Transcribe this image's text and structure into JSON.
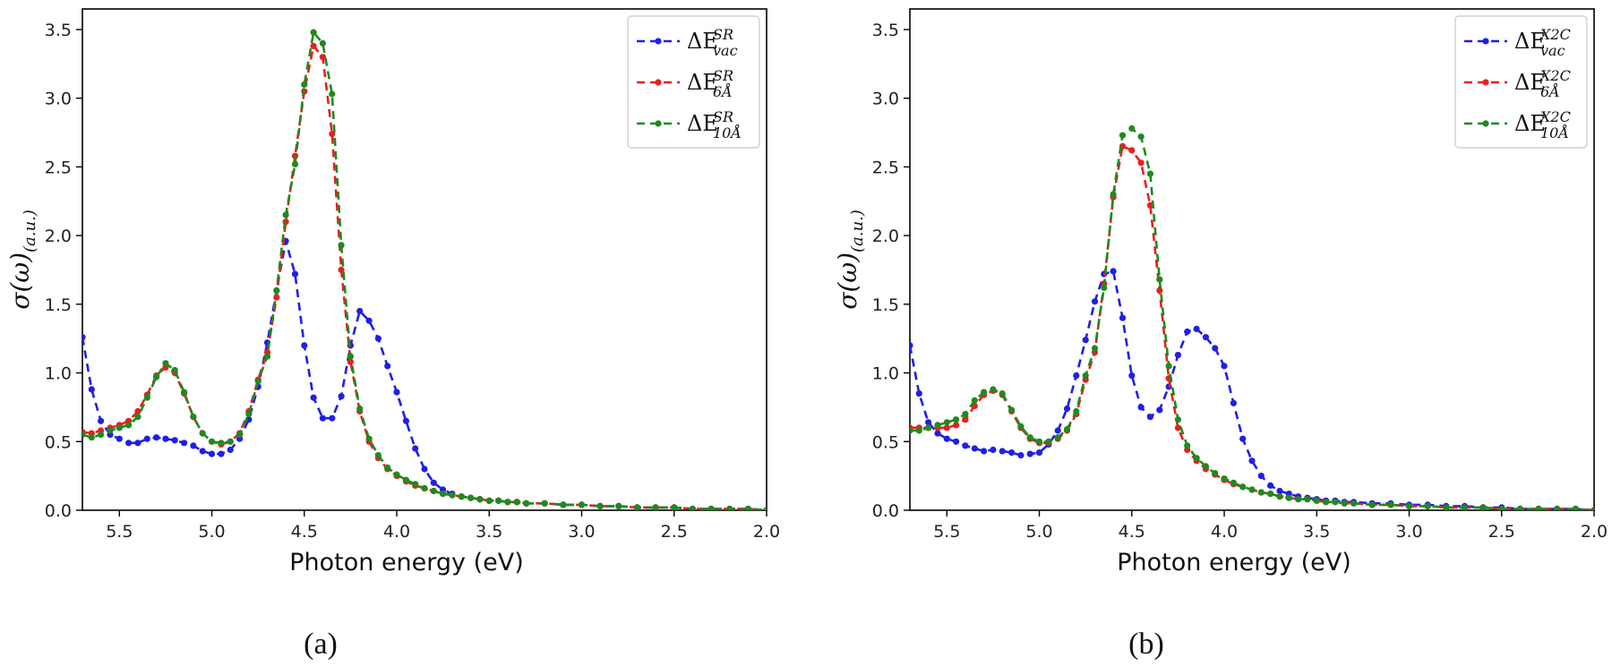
{
  "chart_data": [
    {
      "type": "line",
      "panel_caption": "(a)",
      "xlabel": "Photon energy (eV)",
      "ylabel_main": "σ(ω)",
      "ylabel_sub": "(a.u.)",
      "xlim": [
        5.7,
        2.0
      ],
      "ylim": [
        0,
        3.65
      ],
      "xticks": [
        "5.5",
        "5.0",
        "4.5",
        "4.0",
        "3.5",
        "3.0",
        "2.5",
        "2.0"
      ],
      "yticks": [
        "0.0",
        "0.5",
        "1.0",
        "1.5",
        "2.0",
        "2.5",
        "3.0",
        "3.5"
      ],
      "grid": false,
      "legend_position": "top-right",
      "colors": {
        "vac": "#1f1fe8",
        "six": "#e81f1f",
        "ten": "#1f8a1f"
      },
      "series": [
        {
          "name": "ΔE",
          "sup": "SR",
          "sub": "vac",
          "color": "#1f1fe8",
          "x": [
            5.7,
            5.65,
            5.6,
            5.55,
            5.5,
            5.45,
            5.4,
            5.35,
            5.3,
            5.25,
            5.2,
            5.15,
            5.1,
            5.05,
            5.0,
            4.95,
            4.9,
            4.85,
            4.8,
            4.75,
            4.7,
            4.65,
            4.6,
            4.55,
            4.5,
            4.45,
            4.4,
            4.35,
            4.3,
            4.25,
            4.2,
            4.15,
            4.1,
            4.05,
            4.0,
            3.95,
            3.9,
            3.85,
            3.8,
            3.75,
            3.7,
            3.65,
            3.6,
            3.55,
            3.5,
            3.45,
            3.4,
            3.35,
            3.3,
            3.2,
            3.1,
            3.0,
            2.9,
            2.8,
            2.7,
            2.6,
            2.5,
            2.4,
            2.3,
            2.2,
            2.1,
            2.0
          ],
          "y": [
            1.26,
            0.88,
            0.65,
            0.55,
            0.52,
            0.49,
            0.49,
            0.52,
            0.53,
            0.52,
            0.51,
            0.49,
            0.47,
            0.43,
            0.41,
            0.41,
            0.44,
            0.52,
            0.66,
            0.9,
            1.22,
            1.6,
            1.96,
            1.72,
            1.2,
            0.82,
            0.67,
            0.67,
            0.83,
            1.2,
            1.45,
            1.38,
            1.25,
            1.05,
            0.86,
            0.65,
            0.45,
            0.3,
            0.2,
            0.15,
            0.12,
            0.1,
            0.09,
            0.08,
            0.07,
            0.07,
            0.06,
            0.06,
            0.05,
            0.05,
            0.04,
            0.04,
            0.03,
            0.03,
            0.02,
            0.02,
            0.02,
            0.01,
            0.01,
            0.01,
            0.01,
            0.0
          ]
        },
        {
          "name": "ΔE",
          "sup": "SR",
          "sub": "6Å",
          "color": "#e81f1f",
          "x": [
            5.7,
            5.65,
            5.6,
            5.55,
            5.5,
            5.45,
            5.4,
            5.35,
            5.3,
            5.25,
            5.2,
            5.15,
            5.1,
            5.05,
            5.0,
            4.95,
            4.9,
            4.85,
            4.8,
            4.75,
            4.7,
            4.65,
            4.6,
            4.55,
            4.5,
            4.45,
            4.4,
            4.35,
            4.3,
            4.25,
            4.2,
            4.15,
            4.1,
            4.05,
            4.0,
            3.95,
            3.9,
            3.85,
            3.8,
            3.75,
            3.7,
            3.65,
            3.6,
            3.55,
            3.5,
            3.45,
            3.4,
            3.35,
            3.3,
            3.2,
            3.1,
            3.0,
            2.9,
            2.8,
            2.7,
            2.6,
            2.5,
            2.4,
            2.3,
            2.2,
            2.1,
            2.0
          ],
          "y": [
            0.57,
            0.56,
            0.58,
            0.6,
            0.62,
            0.65,
            0.72,
            0.84,
            0.98,
            1.04,
            1.0,
            0.85,
            0.68,
            0.56,
            0.5,
            0.48,
            0.5,
            0.56,
            0.72,
            0.95,
            1.15,
            1.55,
            2.1,
            2.58,
            3.05,
            3.38,
            3.3,
            2.74,
            1.75,
            1.08,
            0.72,
            0.5,
            0.38,
            0.3,
            0.25,
            0.21,
            0.18,
            0.16,
            0.14,
            0.12,
            0.11,
            0.1,
            0.09,
            0.08,
            0.07,
            0.07,
            0.06,
            0.06,
            0.05,
            0.05,
            0.04,
            0.04,
            0.03,
            0.03,
            0.02,
            0.02,
            0.02,
            0.01,
            0.01,
            0.01,
            0.01,
            0.0
          ]
        },
        {
          "name": "ΔE",
          "sup": "SR",
          "sub": "10Å",
          "color": "#1f8a1f",
          "x": [
            5.7,
            5.65,
            5.6,
            5.55,
            5.5,
            5.45,
            5.4,
            5.35,
            5.3,
            5.25,
            5.2,
            5.15,
            5.1,
            5.05,
            5.0,
            4.95,
            4.9,
            4.85,
            4.8,
            4.75,
            4.7,
            4.65,
            4.6,
            4.55,
            4.5,
            4.45,
            4.4,
            4.35,
            4.3,
            4.25,
            4.2,
            4.15,
            4.1,
            4.05,
            4.0,
            3.95,
            3.9,
            3.85,
            3.8,
            3.75,
            3.7,
            3.65,
            3.6,
            3.55,
            3.5,
            3.45,
            3.4,
            3.35,
            3.3,
            3.2,
            3.1,
            3.0,
            2.9,
            2.8,
            2.7,
            2.6,
            2.5,
            2.4,
            2.3,
            2.2,
            2.1,
            2.0
          ],
          "y": [
            0.55,
            0.53,
            0.55,
            0.58,
            0.6,
            0.62,
            0.68,
            0.82,
            0.97,
            1.07,
            1.02,
            0.86,
            0.68,
            0.56,
            0.5,
            0.49,
            0.5,
            0.55,
            0.7,
            0.94,
            1.12,
            1.6,
            2.15,
            2.52,
            3.1,
            3.48,
            3.4,
            3.03,
            1.93,
            1.12,
            0.74,
            0.52,
            0.4,
            0.31,
            0.26,
            0.22,
            0.19,
            0.16,
            0.14,
            0.12,
            0.11,
            0.1,
            0.09,
            0.08,
            0.07,
            0.07,
            0.06,
            0.06,
            0.05,
            0.05,
            0.04,
            0.04,
            0.03,
            0.03,
            0.02,
            0.02,
            0.02,
            0.01,
            0.01,
            0.01,
            0.01,
            0.0
          ]
        }
      ]
    },
    {
      "type": "line",
      "panel_caption": "(b)",
      "xlabel": "Photon energy (eV)",
      "ylabel_main": "σ(ω)",
      "ylabel_sub": "(a.u.)",
      "xlim": [
        5.7,
        2.0
      ],
      "ylim": [
        0,
        3.65
      ],
      "xticks": [
        "5.5",
        "5.0",
        "4.5",
        "4.0",
        "3.5",
        "3.0",
        "2.5",
        "2.0"
      ],
      "yticks": [
        "0.0",
        "0.5",
        "1.0",
        "1.5",
        "2.0",
        "2.5",
        "3.0",
        "3.5"
      ],
      "grid": false,
      "legend_position": "top-right",
      "colors": {
        "vac": "#1f1fe8",
        "six": "#e81f1f",
        "ten": "#1f8a1f"
      },
      "series": [
        {
          "name": "ΔE",
          "sup": "X2C",
          "sub": "vac",
          "color": "#1f1fe8",
          "x": [
            5.7,
            5.65,
            5.6,
            5.55,
            5.5,
            5.45,
            5.4,
            5.35,
            5.3,
            5.25,
            5.2,
            5.15,
            5.1,
            5.05,
            5.0,
            4.95,
            4.9,
            4.85,
            4.8,
            4.75,
            4.7,
            4.65,
            4.6,
            4.55,
            4.5,
            4.45,
            4.4,
            4.35,
            4.3,
            4.25,
            4.2,
            4.15,
            4.1,
            4.05,
            4.0,
            3.95,
            3.9,
            3.85,
            3.8,
            3.75,
            3.7,
            3.65,
            3.6,
            3.55,
            3.5,
            3.45,
            3.4,
            3.35,
            3.3,
            3.2,
            3.1,
            3.0,
            2.9,
            2.8,
            2.7,
            2.6,
            2.5,
            2.4,
            2.3,
            2.2,
            2.1,
            2.0
          ],
          "y": [
            1.2,
            0.85,
            0.64,
            0.56,
            0.52,
            0.5,
            0.47,
            0.45,
            0.43,
            0.44,
            0.43,
            0.42,
            0.4,
            0.41,
            0.42,
            0.48,
            0.58,
            0.74,
            0.98,
            1.24,
            1.52,
            1.72,
            1.74,
            1.4,
            0.98,
            0.75,
            0.68,
            0.73,
            0.9,
            1.13,
            1.3,
            1.32,
            1.26,
            1.18,
            1.05,
            0.78,
            0.52,
            0.36,
            0.25,
            0.18,
            0.14,
            0.12,
            0.1,
            0.09,
            0.08,
            0.07,
            0.07,
            0.06,
            0.06,
            0.05,
            0.05,
            0.04,
            0.04,
            0.03,
            0.03,
            0.02,
            0.02,
            0.01,
            0.01,
            0.01,
            0.01,
            0.0
          ]
        },
        {
          "name": "ΔE",
          "sup": "X2C",
          "sub": "6Å",
          "color": "#e81f1f",
          "x": [
            5.7,
            5.65,
            5.6,
            5.55,
            5.5,
            5.45,
            5.4,
            5.35,
            5.3,
            5.25,
            5.2,
            5.15,
            5.1,
            5.05,
            5.0,
            4.95,
            4.9,
            4.85,
            4.8,
            4.75,
            4.7,
            4.65,
            4.6,
            4.55,
            4.5,
            4.45,
            4.4,
            4.35,
            4.3,
            4.25,
            4.2,
            4.15,
            4.1,
            4.05,
            4.0,
            3.95,
            3.9,
            3.85,
            3.8,
            3.75,
            3.7,
            3.65,
            3.6,
            3.55,
            3.5,
            3.45,
            3.4,
            3.35,
            3.3,
            3.2,
            3.1,
            3.0,
            2.9,
            2.8,
            2.7,
            2.6,
            2.5,
            2.4,
            2.3,
            2.2,
            2.1,
            2.0
          ],
          "y": [
            0.6,
            0.6,
            0.6,
            0.6,
            0.6,
            0.62,
            0.66,
            0.76,
            0.84,
            0.87,
            0.84,
            0.72,
            0.6,
            0.52,
            0.49,
            0.49,
            0.52,
            0.58,
            0.7,
            0.95,
            1.15,
            1.65,
            2.28,
            2.65,
            2.62,
            2.53,
            2.22,
            1.6,
            0.96,
            0.6,
            0.44,
            0.36,
            0.3,
            0.26,
            0.22,
            0.19,
            0.17,
            0.15,
            0.13,
            0.12,
            0.1,
            0.09,
            0.08,
            0.08,
            0.07,
            0.06,
            0.06,
            0.05,
            0.05,
            0.04,
            0.04,
            0.03,
            0.03,
            0.02,
            0.02,
            0.02,
            0.01,
            0.01,
            0.01,
            0.01,
            0.01,
            0.0
          ]
        },
        {
          "name": "ΔE",
          "sup": "X2C",
          "sub": "10Å",
          "color": "#1f8a1f",
          "x": [
            5.7,
            5.65,
            5.6,
            5.55,
            5.5,
            5.45,
            5.4,
            5.35,
            5.3,
            5.25,
            5.2,
            5.15,
            5.1,
            5.05,
            5.0,
            4.95,
            4.9,
            4.85,
            4.8,
            4.75,
            4.7,
            4.65,
            4.6,
            4.55,
            4.5,
            4.45,
            4.4,
            4.35,
            4.3,
            4.25,
            4.2,
            4.15,
            4.1,
            4.05,
            4.0,
            3.95,
            3.9,
            3.85,
            3.8,
            3.75,
            3.7,
            3.65,
            3.6,
            3.55,
            3.5,
            3.45,
            3.4,
            3.35,
            3.3,
            3.2,
            3.1,
            3.0,
            2.9,
            2.8,
            2.7,
            2.6,
            2.5,
            2.4,
            2.3,
            2.2,
            2.1,
            2.0
          ],
          "y": [
            0.58,
            0.58,
            0.6,
            0.62,
            0.64,
            0.66,
            0.7,
            0.8,
            0.86,
            0.88,
            0.85,
            0.73,
            0.61,
            0.53,
            0.5,
            0.5,
            0.53,
            0.59,
            0.72,
            0.98,
            1.18,
            1.62,
            2.3,
            2.73,
            2.78,
            2.72,
            2.45,
            1.68,
            1.05,
            0.66,
            0.47,
            0.38,
            0.32,
            0.27,
            0.23,
            0.2,
            0.17,
            0.15,
            0.13,
            0.12,
            0.1,
            0.09,
            0.08,
            0.08,
            0.07,
            0.06,
            0.06,
            0.05,
            0.05,
            0.04,
            0.04,
            0.03,
            0.03,
            0.02,
            0.02,
            0.02,
            0.01,
            0.01,
            0.01,
            0.01,
            0.01,
            0.0
          ]
        }
      ]
    }
  ]
}
